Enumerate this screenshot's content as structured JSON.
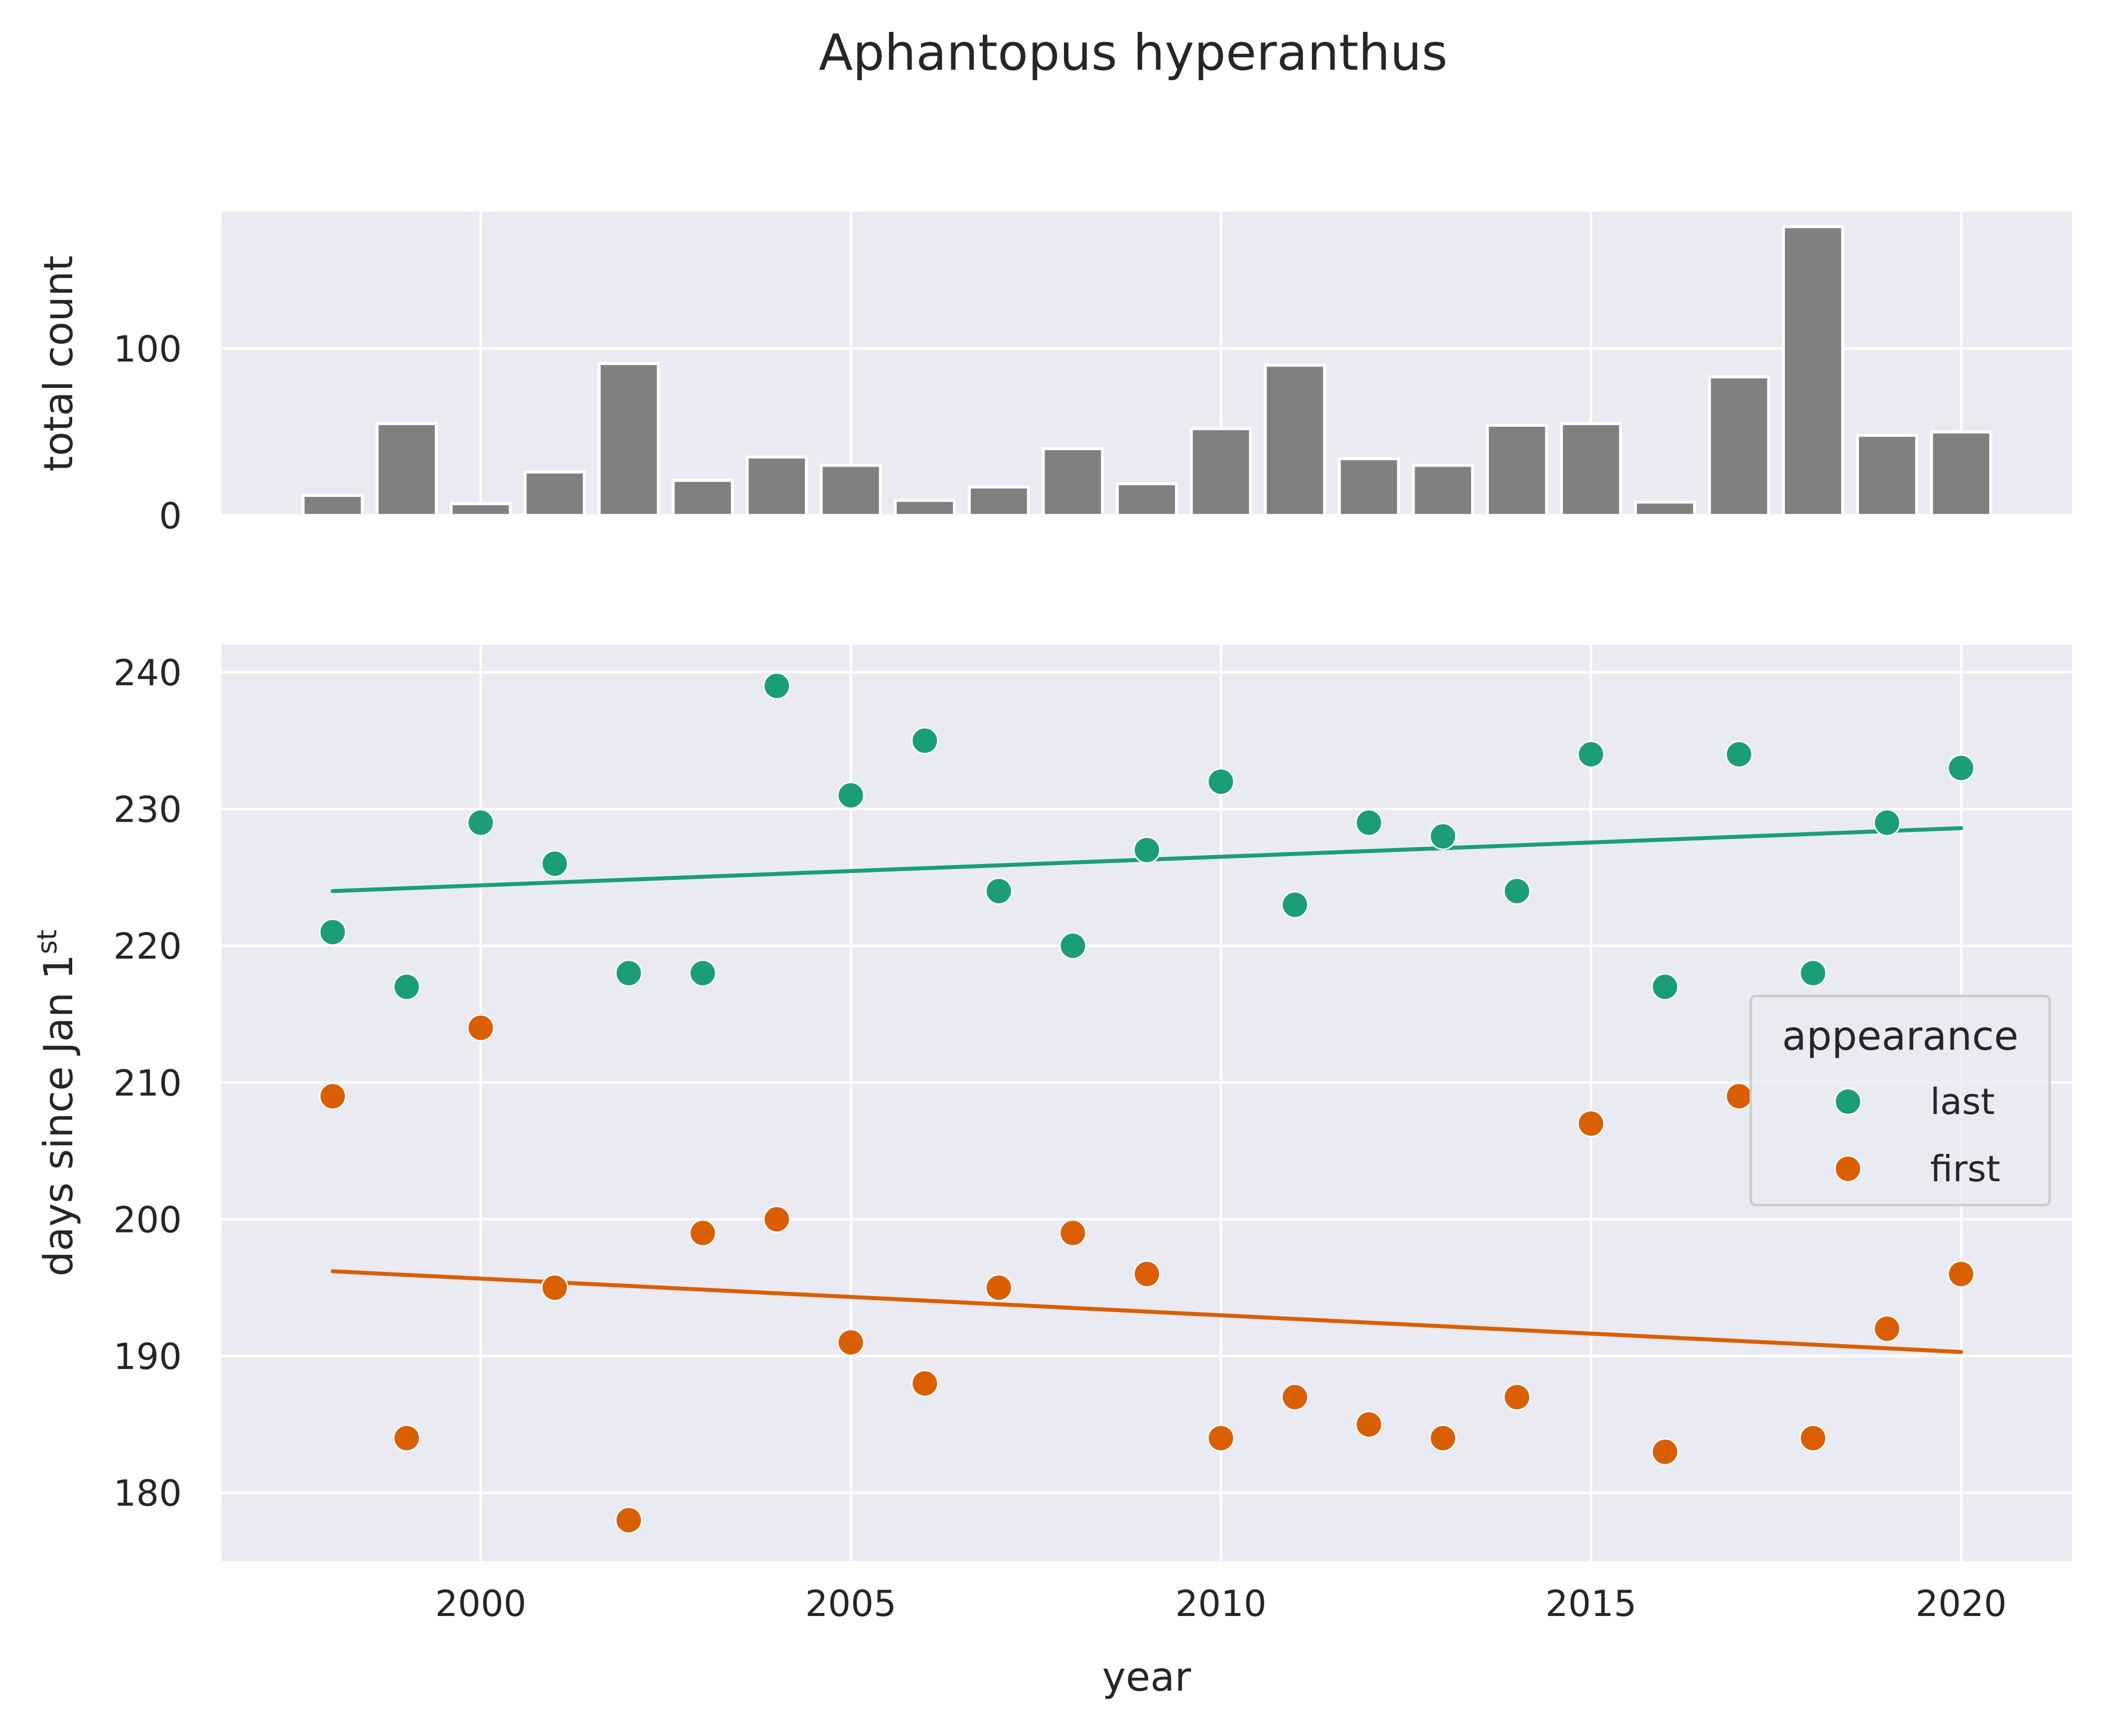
{
  "figure": {
    "suptitle": "Aphantopus hyperanthus",
    "top_ylabel": "total count",
    "bottom_xlabel": "year",
    "bottom_ylabel_main": "days since Jan 1",
    "bottom_ylabel_sup": "st",
    "legend_title": "appearance"
  },
  "chart_data": [
    {
      "type": "bar",
      "panel": "top",
      "ylabel": "total count",
      "x": [
        1998,
        1999,
        2000,
        2001,
        2002,
        2003,
        2004,
        2005,
        2006,
        2007,
        2008,
        2009,
        2010,
        2011,
        2012,
        2013,
        2014,
        2015,
        2016,
        2017,
        2018,
        2019,
        2020
      ],
      "values": [
        12,
        55,
        7,
        26,
        91,
        21,
        35,
        30,
        9,
        17,
        40,
        19,
        52,
        90,
        34,
        30,
        54,
        55,
        8,
        83,
        173,
        48,
        50
      ],
      "xlim": [
        1996.5,
        2021.5
      ],
      "ylim": [
        0,
        182
      ],
      "yticks": [
        0,
        100
      ],
      "color": "#808080",
      "grid": true
    },
    {
      "type": "scatter",
      "panel": "bottom",
      "xlabel": "year",
      "ylabel": "days since Jan 1st",
      "xlim": [
        1996.5,
        2021.5
      ],
      "ylim": [
        175,
        242
      ],
      "xticks": [
        2000,
        2005,
        2010,
        2015,
        2020
      ],
      "yticks": [
        180,
        190,
        200,
        210,
        220,
        230,
        240
      ],
      "grid": true,
      "legend": {
        "title": "appearance",
        "placement": "center-right"
      },
      "series": [
        {
          "name": "last",
          "color": "#1b9e77",
          "x": [
            1998,
            1999,
            2000,
            2001,
            2002,
            2003,
            2004,
            2005,
            2006,
            2007,
            2008,
            2009,
            2010,
            2011,
            2012,
            2013,
            2014,
            2015,
            2016,
            2017,
            2018,
            2019,
            2020
          ],
          "y": [
            221,
            217,
            229,
            226,
            218,
            218,
            239,
            231,
            235,
            224,
            220,
            227,
            232,
            223,
            229,
            228,
            224,
            234,
            217,
            234,
            218,
            229,
            233
          ],
          "trend": {
            "x": [
              1998,
              2020
            ],
            "y": [
              224.0,
              228.6
            ]
          }
        },
        {
          "name": "first",
          "color": "#d95f02",
          "x": [
            1998,
            1999,
            2000,
            2001,
            2002,
            2003,
            2004,
            2005,
            2006,
            2007,
            2008,
            2009,
            2010,
            2011,
            2012,
            2013,
            2014,
            2015,
            2016,
            2017,
            2018,
            2019,
            2020
          ],
          "y": [
            209,
            184,
            214,
            195,
            178,
            199,
            200,
            191,
            188,
            195,
            199,
            196,
            184,
            187,
            185,
            184,
            187,
            207,
            183,
            209,
            184,
            192,
            196
          ],
          "trend": {
            "x": [
              1998,
              2020
            ],
            "y": [
              196.2,
              190.3
            ]
          }
        }
      ]
    }
  ]
}
